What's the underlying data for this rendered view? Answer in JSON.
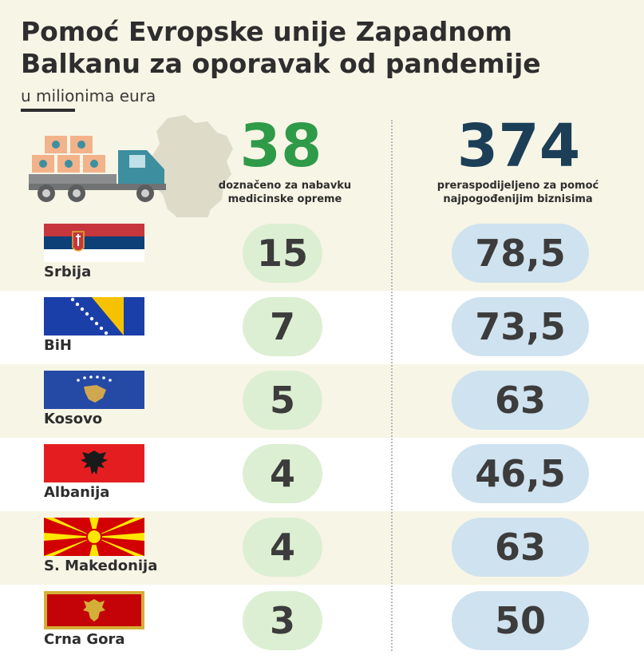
{
  "title": "Pomoć Evropske unije Zapadnom Balkanu za oporavak od pandemije",
  "subtitle": "u milionima eura",
  "colors": {
    "background": "#f7f5e6",
    "green_accent": "#2f9a48",
    "blue_accent": "#1c3f57",
    "green_pill": "#dcefd2",
    "blue_pill": "#cfe2ef"
  },
  "icons": [
    "western-balkans-map-icon",
    "delivery-truck-icon"
  ],
  "chart_data": {
    "type": "table",
    "title": "Pomoć Evropske unije Zapadnom Balkanu za oporavak od pandemije",
    "subtitle": "u milionima eura",
    "totals": [
      {
        "value": "38",
        "label": "doznačeno za nabavku medicinske opreme"
      },
      {
        "value": "374",
        "label": "preraspodijeljeno za pomoć najpogođenijim biznisima"
      }
    ],
    "categories": [
      "Srbija",
      "BiH",
      "Kosovo",
      "Albanija",
      "S. Makedonija",
      "Crna Gora"
    ],
    "series": [
      {
        "name": "doznačeno za nabavku medicinske opreme",
        "values": [
          15,
          7,
          5,
          4,
          4,
          3
        ]
      },
      {
        "name": "preraspodijeljeno za pomoć najpogođenijim biznisima",
        "values": [
          78.5,
          73.5,
          63,
          46.5,
          63,
          50
        ]
      }
    ],
    "rows": [
      {
        "country": "Srbija",
        "flag": "serbia-flag",
        "medical": "15",
        "business": "78,5"
      },
      {
        "country": "BiH",
        "flag": "bosnia-flag",
        "medical": "7",
        "business": "73,5"
      },
      {
        "country": "Kosovo",
        "flag": "kosovo-flag",
        "medical": "5",
        "business": "63"
      },
      {
        "country": "Albanija",
        "flag": "albania-flag",
        "medical": "4",
        "business": "46,5"
      },
      {
        "country": "S. Makedonija",
        "flag": "north-macedonia-flag",
        "medical": "4",
        "business": "63"
      },
      {
        "country": "Crna Gora",
        "flag": "montenegro-flag",
        "medical": "3",
        "business": "50"
      }
    ]
  }
}
